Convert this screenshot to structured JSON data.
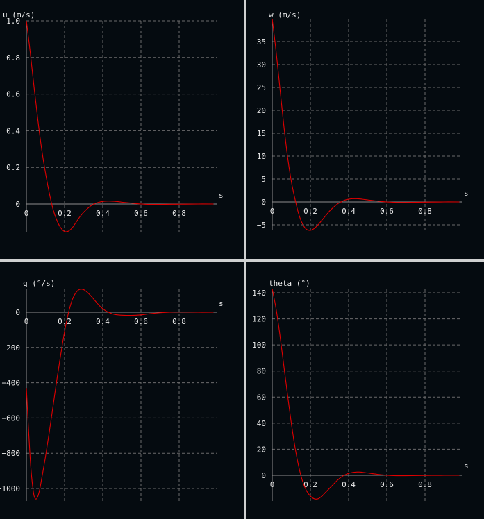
{
  "colors": {
    "background": "#050b10",
    "separator": "#cfd0d0",
    "curve": "#e00000",
    "grid": "#6b6b6b",
    "axis": "#8e8e8e",
    "text": "#e8e8e8"
  },
  "chart_data": [
    {
      "type": "line",
      "title": "",
      "ylabel": "u (m/s)",
      "xlabel": "s",
      "grid": true,
      "xlim": [
        0,
        0.98
      ],
      "ylim": [
        -0.155,
        1.0
      ],
      "xticks": [
        0,
        0.2,
        0.4,
        0.6,
        0.8
      ],
      "yticks": [
        0,
        0.2,
        0.4,
        0.6,
        0.8,
        1.0
      ],
      "yticklabels": [
        "0",
        "0.2",
        "0.4",
        "0.6",
        "0.8",
        "1.0"
      ],
      "series": [
        {
          "x": [
            0,
            0.02,
            0.04,
            0.06,
            0.08,
            0.1,
            0.12,
            0.14,
            0.16,
            0.18,
            0.2,
            0.22,
            0.24,
            0.26,
            0.28,
            0.3,
            0.32,
            0.34,
            0.36,
            0.38,
            0.4,
            0.42,
            0.44,
            0.46,
            0.48,
            0.5,
            0.55,
            0.6,
            0.65,
            0.7,
            0.8,
            0.9,
            0.98
          ],
          "y": [
            1.0,
            0.83,
            0.64,
            0.46,
            0.3,
            0.17,
            0.06,
            -0.03,
            -0.09,
            -0.13,
            -0.15,
            -0.148,
            -0.13,
            -0.1,
            -0.07,
            -0.045,
            -0.025,
            -0.008,
            0.003,
            0.01,
            0.014,
            0.016,
            0.016,
            0.015,
            0.013,
            0.01,
            0.005,
            0.0,
            -0.002,
            -0.002,
            -0.001,
            0.0,
            0.0
          ]
        }
      ]
    },
    {
      "type": "line",
      "title": "",
      "ylabel": "w (m/s)",
      "xlabel": "s",
      "grid": true,
      "xlim": [
        0,
        0.98
      ],
      "ylim": [
        -6.5,
        40
      ],
      "xticks": [
        0,
        0.2,
        0.4,
        0.6,
        0.8
      ],
      "yticks": [
        -5,
        0,
        5,
        10,
        15,
        20,
        25,
        30,
        35
      ],
      "yticklabels": [
        "−5",
        "0",
        "5",
        "10",
        "15",
        "20",
        "25",
        "30",
        "35"
      ],
      "series": [
        {
          "x": [
            0,
            0.02,
            0.04,
            0.06,
            0.08,
            0.1,
            0.12,
            0.14,
            0.16,
            0.18,
            0.2,
            0.22,
            0.24,
            0.26,
            0.28,
            0.3,
            0.32,
            0.34,
            0.36,
            0.38,
            0.4,
            0.42,
            0.44,
            0.46,
            0.48,
            0.5,
            0.55,
            0.6,
            0.65,
            0.7,
            0.8,
            0.9,
            0.98
          ],
          "y": [
            40,
            33,
            25,
            17,
            10,
            4.5,
            0.5,
            -2.8,
            -4.9,
            -6.0,
            -6.2,
            -5.8,
            -5.0,
            -4.0,
            -3.0,
            -2.0,
            -1.2,
            -0.5,
            0.0,
            0.4,
            0.6,
            0.7,
            0.7,
            0.65,
            0.55,
            0.45,
            0.2,
            0.0,
            -0.1,
            -0.1,
            -0.05,
            0.0,
            0.0
          ]
        }
      ]
    },
    {
      "type": "line",
      "title": "",
      "ylabel": "q (°/s)",
      "xlabel": "s",
      "grid": true,
      "xlim": [
        0,
        0.98
      ],
      "ylim": [
        -1060,
        135
      ],
      "xticks": [
        0,
        0.2,
        0.4,
        0.6,
        0.8
      ],
      "yticks": [
        -1000,
        -800,
        -600,
        -400,
        -200,
        0
      ],
      "yticklabels": [
        "−1000",
        "−800",
        "−600",
        "−400",
        "−200",
        "0"
      ],
      "series": [
        {
          "x": [
            0,
            0.01,
            0.02,
            0.03,
            0.04,
            0.05,
            0.06,
            0.07,
            0.08,
            0.1,
            0.12,
            0.14,
            0.16,
            0.18,
            0.2,
            0.22,
            0.24,
            0.26,
            0.28,
            0.3,
            0.32,
            0.34,
            0.36,
            0.38,
            0.4,
            0.42,
            0.44,
            0.46,
            0.48,
            0.5,
            0.55,
            0.6,
            0.65,
            0.7,
            0.75,
            0.8,
            0.9,
            0.98
          ],
          "y": [
            -430,
            -640,
            -830,
            -960,
            -1040,
            -1060,
            -1045,
            -1005,
            -945,
            -820,
            -680,
            -530,
            -380,
            -240,
            -110,
            -5,
            70,
            112,
            130,
            128,
            112,
            90,
            65,
            40,
            20,
            5,
            -5,
            -12,
            -15,
            -17,
            -18,
            -15,
            -8,
            -3,
            0,
            1,
            0,
            0
          ]
        }
      ]
    },
    {
      "type": "line",
      "title": "",
      "ylabel": "theta (°)",
      "xlabel": "s",
      "grid": true,
      "xlim": [
        0,
        0.98
      ],
      "ylim": [
        -19,
        145
      ],
      "xticks": [
        0,
        0.2,
        0.4,
        0.6,
        0.8
      ],
      "yticks": [
        0,
        20,
        40,
        60,
        80,
        100,
        120,
        140
      ],
      "yticklabels": [
        "0",
        "20",
        "40",
        "60",
        "80",
        "100",
        "120",
        "140"
      ],
      "series": [
        {
          "x": [
            0,
            0.02,
            0.04,
            0.06,
            0.08,
            0.1,
            0.12,
            0.14,
            0.16,
            0.18,
            0.2,
            0.22,
            0.24,
            0.26,
            0.28,
            0.3,
            0.32,
            0.34,
            0.36,
            0.38,
            0.4,
            0.42,
            0.44,
            0.46,
            0.48,
            0.5,
            0.55,
            0.6,
            0.65,
            0.7,
            0.8,
            0.9,
            0.98
          ],
          "y": [
            143,
            128,
            108,
            85,
            62,
            40,
            21,
            6,
            -5,
            -12,
            -16,
            -18,
            -18,
            -16,
            -13,
            -10,
            -7,
            -4,
            -1.5,
            0.3,
            1.5,
            2.2,
            2.5,
            2.5,
            2.2,
            1.8,
            0.8,
            0.0,
            -0.3,
            -0.3,
            -0.1,
            0.0,
            0.0
          ]
        }
      ]
    }
  ]
}
